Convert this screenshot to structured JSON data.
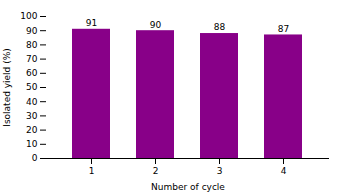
{
  "chart_data": {
    "type": "bar",
    "categories": [
      "1",
      "2",
      "3",
      "4"
    ],
    "values": [
      91,
      90,
      88,
      87
    ],
    "color": "#880088",
    "xlabel": "Number of cycle",
    "ylabel": "Isolated yield (%)",
    "ylim": [
      0,
      100
    ],
    "yticks": [
      0,
      10,
      20,
      30,
      40,
      50,
      60,
      70,
      80,
      90,
      100
    ],
    "grid": false,
    "data_labels": true
  }
}
